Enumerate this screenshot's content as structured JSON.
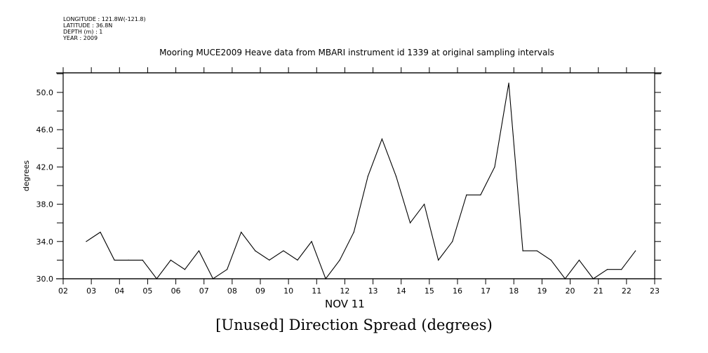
{
  "header": {
    "longitude": "LONGITUDE : 121.8W(-121.8)",
    "latitude": "LATITUDE : 36.8N",
    "depth": "DEPTH (m) : 1",
    "year": "YEAR : 2009"
  },
  "chart_data": {
    "type": "line",
    "title": "Mooring MUCE2009 Heave data from MBARI instrument id 1339 at original sampling intervals",
    "caption": "[Unused] Direction Spread (degrees)",
    "xlabel": "NOV 11",
    "ylabel": "degrees",
    "xlim": [
      2,
      23
    ],
    "ylim": [
      30,
      52.1
    ],
    "x_ticks": [
      "02",
      "03",
      "04",
      "05",
      "06",
      "07",
      "08",
      "09",
      "10",
      "11",
      "12",
      "13",
      "14",
      "15",
      "16",
      "17",
      "18",
      "19",
      "20",
      "21",
      "22",
      "23"
    ],
    "y_ticks": [
      "30.0",
      "34.0",
      "38.0",
      "42.0",
      "46.0",
      "50.0"
    ],
    "y_minor_step": 2,
    "grid": false,
    "series": [
      {
        "name": "Direction Spread",
        "x_start": 2.82,
        "x_step": 0.5,
        "values": [
          34,
          35,
          32,
          32,
          32,
          30,
          32,
          31,
          33,
          30,
          31,
          35,
          33,
          32,
          33,
          32,
          34,
          30,
          32,
          35,
          41,
          45,
          41,
          36,
          38,
          32,
          34,
          39,
          39,
          42,
          51,
          33,
          33,
          32,
          30,
          32,
          30,
          31,
          31,
          33
        ]
      }
    ]
  }
}
